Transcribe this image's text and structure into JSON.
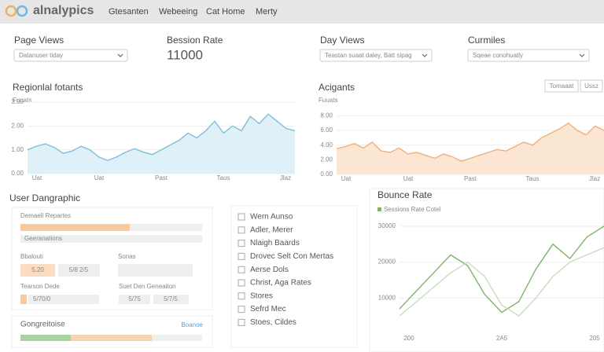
{
  "header": {
    "logo": "alnalypics",
    "nav": [
      "Gtesanten",
      "Webeeing",
      "Cat Home",
      "Merty"
    ]
  },
  "cards": [
    {
      "title": "Page Views",
      "select": "Datanuser tiday"
    },
    {
      "title": "Bession Rate",
      "value": 11000
    },
    {
      "title": "Day Views",
      "select": "Teastan suaat daley, Batt sipag"
    },
    {
      "title": "Curmiles",
      "select": "Sqeae conohuatly"
    }
  ],
  "charts": {
    "regional": {
      "title": "Regionlal fotants",
      "subtitle": "Fuuats",
      "ylim": [
        0,
        3
      ],
      "yticks": [
        {
          "value": 0,
          "label": "0.00"
        },
        {
          "value": 1,
          "label": "1.00"
        },
        {
          "value": 2,
          "label": "2.00"
        },
        {
          "value": 3,
          "label": "3.00"
        }
      ],
      "xlabels": [
        "Uat",
        "Uat",
        "Past",
        "Taus",
        "Jlaz"
      ],
      "series": [
        {
          "name": "Fuuats",
          "color": "#7cc0dc",
          "fill": "#dff0f8",
          "values": [
            1.0,
            1.15,
            1.25,
            1.1,
            0.85,
            0.95,
            1.15,
            1.0,
            0.7,
            0.55,
            0.7,
            0.9,
            1.05,
            0.9,
            0.8,
            1.0,
            1.2,
            1.4,
            1.7,
            1.5,
            1.8,
            2.2,
            1.7,
            2.0,
            1.8,
            2.4,
            2.1,
            2.5,
            2.2,
            1.9,
            1.8
          ]
        }
      ]
    },
    "acigants": {
      "title": "Acigants",
      "subtitle": "Fuuats",
      "buttons": [
        "Tomaaat",
        "Ussz"
      ],
      "ylim": [
        0,
        9
      ],
      "yticks": [
        {
          "value": 0,
          "label": "0.00"
        },
        {
          "value": 2,
          "label": "2.00"
        },
        {
          "value": 4,
          "label": "4.00"
        },
        {
          "value": 6,
          "label": "6.00"
        },
        {
          "value": 8,
          "label": "8.00"
        }
      ],
      "xlabels": [
        "Uat",
        "Uat",
        "Past",
        "Taus",
        "Jlaz"
      ],
      "series": [
        {
          "name": "Fuuats",
          "color": "#f0b07c",
          "fill": "#fbe6d4",
          "values": [
            3.5,
            3.8,
            4.2,
            3.6,
            4.4,
            3.2,
            3.0,
            3.6,
            2.8,
            3.0,
            2.6,
            2.2,
            2.8,
            2.4,
            1.8,
            2.2,
            2.6,
            3.0,
            3.4,
            3.2,
            3.8,
            4.4,
            4.0,
            5.0,
            5.6,
            6.2,
            7.0,
            6.0,
            5.4,
            6.6,
            6.0
          ]
        }
      ]
    },
    "bounce": {
      "title": "Bounce Rate",
      "ylim": [
        0,
        35000
      ],
      "yticks": [
        10000,
        20000,
        30000
      ],
      "xlabels": [
        "200",
        "2A5",
        "205"
      ],
      "series": [
        {
          "name": "Sessions Rate Cotel",
          "color": "#7cb46c",
          "values": [
            7000,
            12000,
            17000,
            22000,
            19000,
            11000,
            6000,
            9000,
            18000,
            25000,
            21000,
            27000,
            30000
          ]
        },
        {
          "color": "#c8dcc0",
          "values": [
            5000,
            9000,
            13000,
            17000,
            20000,
            16000,
            8000,
            5000,
            10000,
            16000,
            20000,
            22000,
            24000
          ]
        }
      ]
    }
  },
  "demographic": {
    "title": "User Dangraphic",
    "row1": "Demaell Repartes",
    "row2": "Geeranations",
    "a_label": "Bbalouti",
    "a_pills": [
      "5.20",
      "5/8 2/5"
    ],
    "b_label": "Sonas",
    "c_label": "Tearson Dede",
    "c_pill": "5/70/0",
    "d_label": "Suet Den Geneaiton",
    "d_pills": [
      "5/75",
      "5/7/5"
    ],
    "footer": "Gongreitoise",
    "footer_link": "Boanoe"
  },
  "checklist": [
    "Wern Aunso",
    "Adler, Merer",
    "Nlaigh Baards",
    "Drovec Selt Con Mertas",
    "Aerse Dols",
    "Christ, Aga Rates",
    "Stores",
    "Sefrd Mec",
    "Stoes, Cildes"
  ]
}
